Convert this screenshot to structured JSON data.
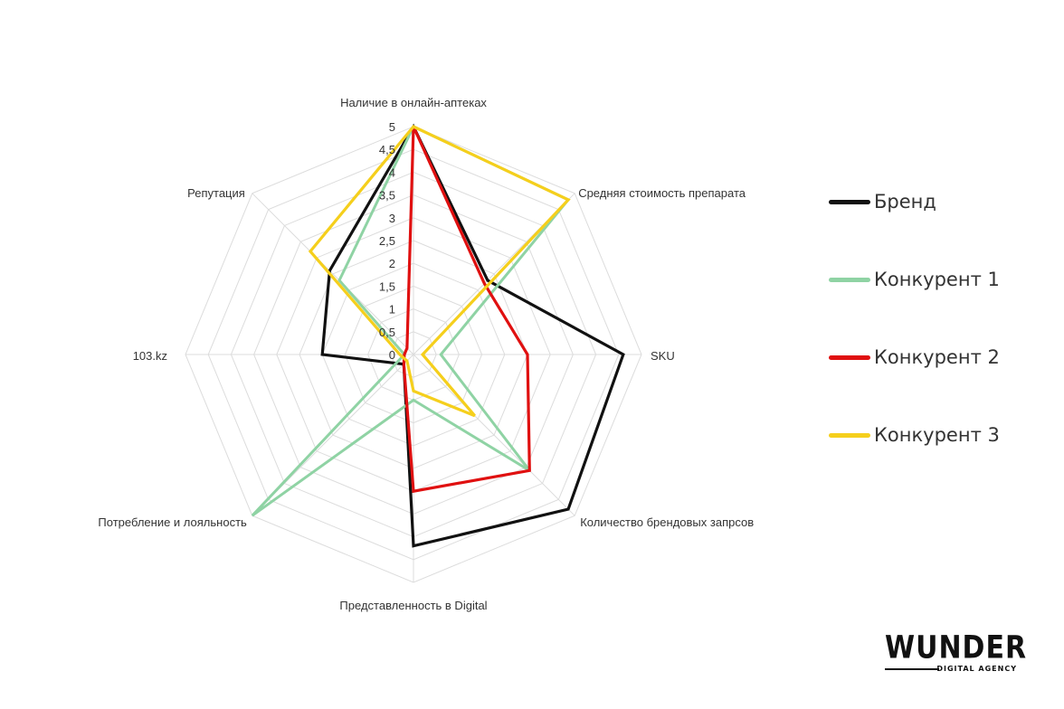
{
  "chart_data": {
    "type": "radar",
    "title": "",
    "axes": [
      "Наличие в онлайн-аптеках",
      "Средняя стоимость препарата",
      "SKU",
      "Количество брендовых запрсов",
      "Представленность в Digital",
      "Потребление и лояльность",
      "103.kz",
      "Репутация"
    ],
    "ticks": [
      "0",
      "0,5",
      "1",
      "1,5",
      "2",
      "2,5",
      "3",
      "3,5",
      "4",
      "4,5",
      "5"
    ],
    "range": [
      0,
      5
    ],
    "grid": true,
    "legend_position": "right",
    "series": [
      {
        "name": "Бренд",
        "color": "#111111",
        "values": [
          5,
          2.3,
          4.6,
          4.8,
          4.2,
          0.3,
          2.0,
          2.6
        ]
      },
      {
        "name": "Конкурент 1",
        "color": "#8fd3a4",
        "values": [
          5,
          4.8,
          0.6,
          3.6,
          1.0,
          5.0,
          0.2,
          2.3
        ]
      },
      {
        "name": "Конкурент 2",
        "color": "#e01010",
        "values": [
          5,
          2.2,
          2.5,
          3.6,
          3.0,
          0.3,
          0.2,
          0.2
        ]
      },
      {
        "name": "Конкурент 3",
        "color": "#f5cf1c",
        "values": [
          5,
          4.8,
          0.2,
          1.9,
          0.8,
          0.2,
          0.3,
          3.2
        ]
      }
    ]
  },
  "logo": {
    "word": "WUNDER",
    "sub": "DIGITAL AGENCY"
  }
}
